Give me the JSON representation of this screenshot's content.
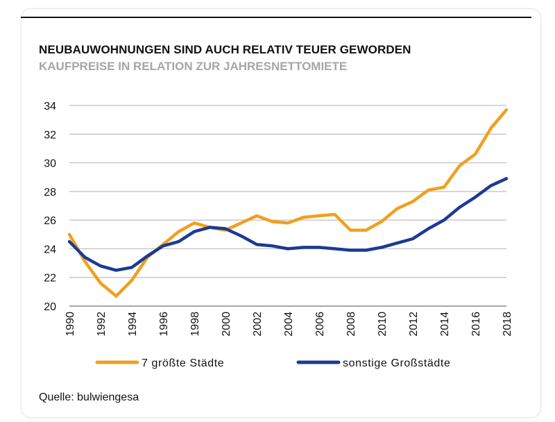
{
  "header": {
    "title": "NEUBAUWOHNUNGEN SIND AUCH RELATIV TEUER GEWORDEN",
    "subtitle": "KAUFPREISE IN RELATION ZUR JAHRESNETTOMIETE"
  },
  "footer": {
    "source": "Quelle: bulwiengesa"
  },
  "chart_data": {
    "type": "line",
    "title": "NEUBAUWOHNUNGEN SIND AUCH RELATIV TEUER GEWORDEN",
    "subtitle": "KAUFPREISE IN RELATION ZUR JAHRESNETTOMIETE",
    "xlabel": "",
    "ylabel": "",
    "x": [
      1990,
      1991,
      1992,
      1993,
      1994,
      1995,
      1996,
      1997,
      1998,
      1999,
      2000,
      2001,
      2002,
      2003,
      2004,
      2005,
      2006,
      2007,
      2008,
      2009,
      2010,
      2011,
      2012,
      2013,
      2014,
      2015,
      2016,
      2017,
      2018
    ],
    "x_tick_labels": [
      "1990",
      "1992",
      "1994",
      "1996",
      "1998",
      "2000",
      "2002",
      "2004",
      "2006",
      "2008",
      "2010",
      "2012",
      "2014",
      "2016",
      "2018"
    ],
    "y_tick_labels": [
      "20",
      "22",
      "24",
      "26",
      "28",
      "30",
      "32",
      "34"
    ],
    "ylim": [
      20,
      34
    ],
    "grid": true,
    "legend_position": "bottom",
    "series": [
      {
        "name": "7 größte Städte",
        "color": "#f0a01e",
        "values": [
          25.0,
          23.1,
          21.6,
          20.7,
          21.8,
          23.4,
          24.3,
          25.2,
          25.8,
          25.5,
          25.3,
          25.8,
          26.3,
          25.9,
          25.8,
          26.2,
          26.3,
          26.4,
          25.3,
          25.3,
          25.9,
          26.8,
          27.3,
          28.1,
          28.3,
          29.8,
          30.6,
          32.4,
          33.7
        ]
      },
      {
        "name": "sonstige Großstädte",
        "color": "#1c3a94",
        "values": [
          24.5,
          23.4,
          22.8,
          22.5,
          22.7,
          23.5,
          24.2,
          24.5,
          25.2,
          25.5,
          25.4,
          24.9,
          24.3,
          24.2,
          24.0,
          24.1,
          24.1,
          24.0,
          23.9,
          23.9,
          24.1,
          24.4,
          24.7,
          25.4,
          26.0,
          26.9,
          27.6,
          28.4,
          28.9
        ]
      }
    ]
  }
}
